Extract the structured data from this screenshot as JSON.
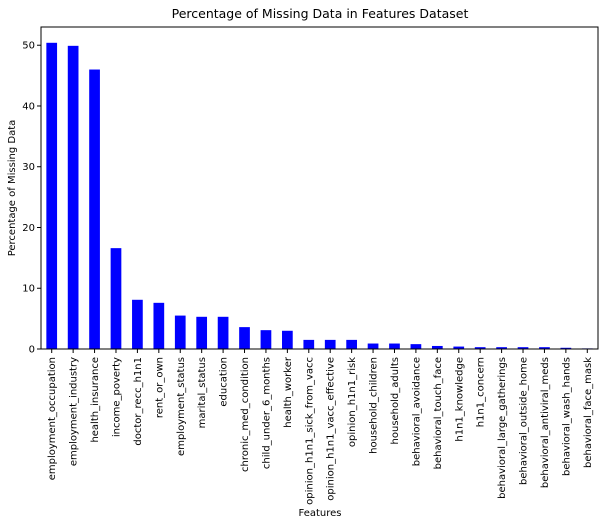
{
  "chart_data": {
    "type": "bar",
    "title": "Percentage of Missing Data in Features Dataset",
    "xlabel": "Features",
    "ylabel": "Percentage of Missing Data",
    "ylim": [
      0,
      53
    ],
    "yticks": [
      0,
      10,
      20,
      30,
      40,
      50
    ],
    "grid": false,
    "bar_color": "#0000ff",
    "categories": [
      "employment_occupation",
      "employment_industry",
      "health_insurance",
      "income_poverty",
      "doctor_recc_h1n1",
      "rent_or_own",
      "employment_status",
      "marital_status",
      "education",
      "chronic_med_condition",
      "child_under_6_months",
      "health_worker",
      "opinion_h1n1_sick_from_vacc",
      "opinion_h1n1_vacc_effective",
      "opinion_h1n1_risk",
      "household_children",
      "household_adults",
      "behavioral_avoidance",
      "behavioral_touch_face",
      "h1n1_knowledge",
      "h1n1_concern",
      "behavioral_large_gatherings",
      "behavioral_outside_home",
      "behavioral_antiviral_meds",
      "behavioral_wash_hands",
      "behavioral_face_mask"
    ],
    "values": [
      50.4,
      49.9,
      46.0,
      16.6,
      8.1,
      7.6,
      5.5,
      5.3,
      5.3,
      3.6,
      3.1,
      3.0,
      1.5,
      1.5,
      1.5,
      0.9,
      0.9,
      0.8,
      0.5,
      0.4,
      0.3,
      0.3,
      0.3,
      0.3,
      0.2,
      0.1
    ]
  }
}
